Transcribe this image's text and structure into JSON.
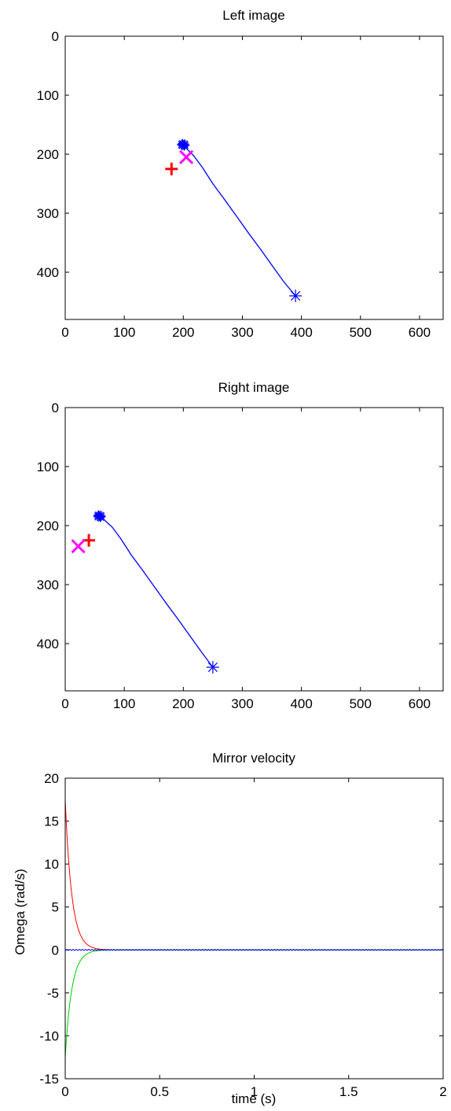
{
  "chart_data": [
    {
      "type": "scatter",
      "title": "Left image",
      "xlabel": "",
      "ylabel": "",
      "xlim": [
        0,
        640
      ],
      "ylim": [
        480,
        0
      ],
      "y_reversed": true,
      "xticks": [
        0,
        100,
        200,
        300,
        400,
        500,
        600
      ],
      "yticks": [
        0,
        100,
        200,
        300,
        400
      ],
      "grid": false,
      "series": [
        {
          "kind": "line",
          "color": "#0000ff",
          "points": [
            [
              390,
              440
            ],
            [
              370,
              416
            ],
            [
              350,
              388
            ],
            [
              330,
              360
            ],
            [
              310,
              333
            ],
            [
              290,
              305
            ],
            [
              270,
              277
            ],
            [
              250,
              250
            ],
            [
              232,
              222
            ],
            [
              218,
              203
            ],
            [
              207,
              192
            ],
            [
              201,
              185
            ]
          ]
        },
        {
          "kind": "cluster",
          "color": "#0000ff",
          "marker": "asterisk",
          "points": [
            [
              200,
              184
            ]
          ]
        },
        {
          "kind": "marker",
          "color": "#0000ff",
          "marker": "asterisk",
          "points": [
            [
              390,
              440
            ]
          ]
        },
        {
          "kind": "marker",
          "color": "#ff0000",
          "marker": "plus",
          "points": [
            [
              180,
              225
            ]
          ]
        },
        {
          "kind": "marker",
          "color": "#ff00ff",
          "marker": "cross",
          "points": [
            [
              205,
              205
            ]
          ]
        }
      ]
    },
    {
      "type": "scatter",
      "title": "Right image",
      "xlabel": "",
      "ylabel": "",
      "xlim": [
        0,
        640
      ],
      "ylim": [
        480,
        0
      ],
      "y_reversed": true,
      "xticks": [
        0,
        100,
        200,
        300,
        400,
        500,
        600
      ],
      "yticks": [
        0,
        100,
        200,
        300,
        400
      ],
      "grid": false,
      "series": [
        {
          "kind": "line",
          "color": "#0000ff",
          "points": [
            [
              250,
              440
            ],
            [
              232,
              416
            ],
            [
              212,
              388
            ],
            [
              192,
              360
            ],
            [
              172,
              333
            ],
            [
              152,
              305
            ],
            [
              132,
              277
            ],
            [
              112,
              250
            ],
            [
              94,
              222
            ],
            [
              80,
              203
            ],
            [
              68,
              192
            ],
            [
              61,
              185
            ]
          ]
        },
        {
          "kind": "cluster",
          "color": "#0000ff",
          "marker": "asterisk",
          "points": [
            [
              58,
              184
            ]
          ]
        },
        {
          "kind": "marker",
          "color": "#0000ff",
          "marker": "asterisk",
          "points": [
            [
              250,
              440
            ]
          ]
        },
        {
          "kind": "marker",
          "color": "#ff0000",
          "marker": "plus",
          "points": [
            [
              40,
              225
            ]
          ]
        },
        {
          "kind": "marker",
          "color": "#ff00ff",
          "marker": "cross",
          "points": [
            [
              22,
              235
            ]
          ]
        }
      ]
    },
    {
      "type": "line",
      "title": "Mirror velocity",
      "xlabel": "time (s)",
      "ylabel": "Omega (rad/s)",
      "xlim": [
        0,
        2
      ],
      "ylim": [
        -15,
        20
      ],
      "xticks": [
        0,
        0.5,
        1,
        1.5,
        2
      ],
      "yticks": [
        -15,
        -10,
        -5,
        0,
        5,
        10,
        15,
        20
      ],
      "grid": false,
      "series": [
        {
          "kind": "decay",
          "color": "#ff0000",
          "start": 17.5,
          "tau": 0.035,
          "x_end": 2
        },
        {
          "kind": "decay",
          "color": "#00cc00",
          "start": -12.5,
          "tau": 0.035,
          "x_end": 2
        },
        {
          "kind": "flat",
          "color": "#0000ff",
          "value": 0,
          "x_end": 2
        }
      ]
    }
  ]
}
